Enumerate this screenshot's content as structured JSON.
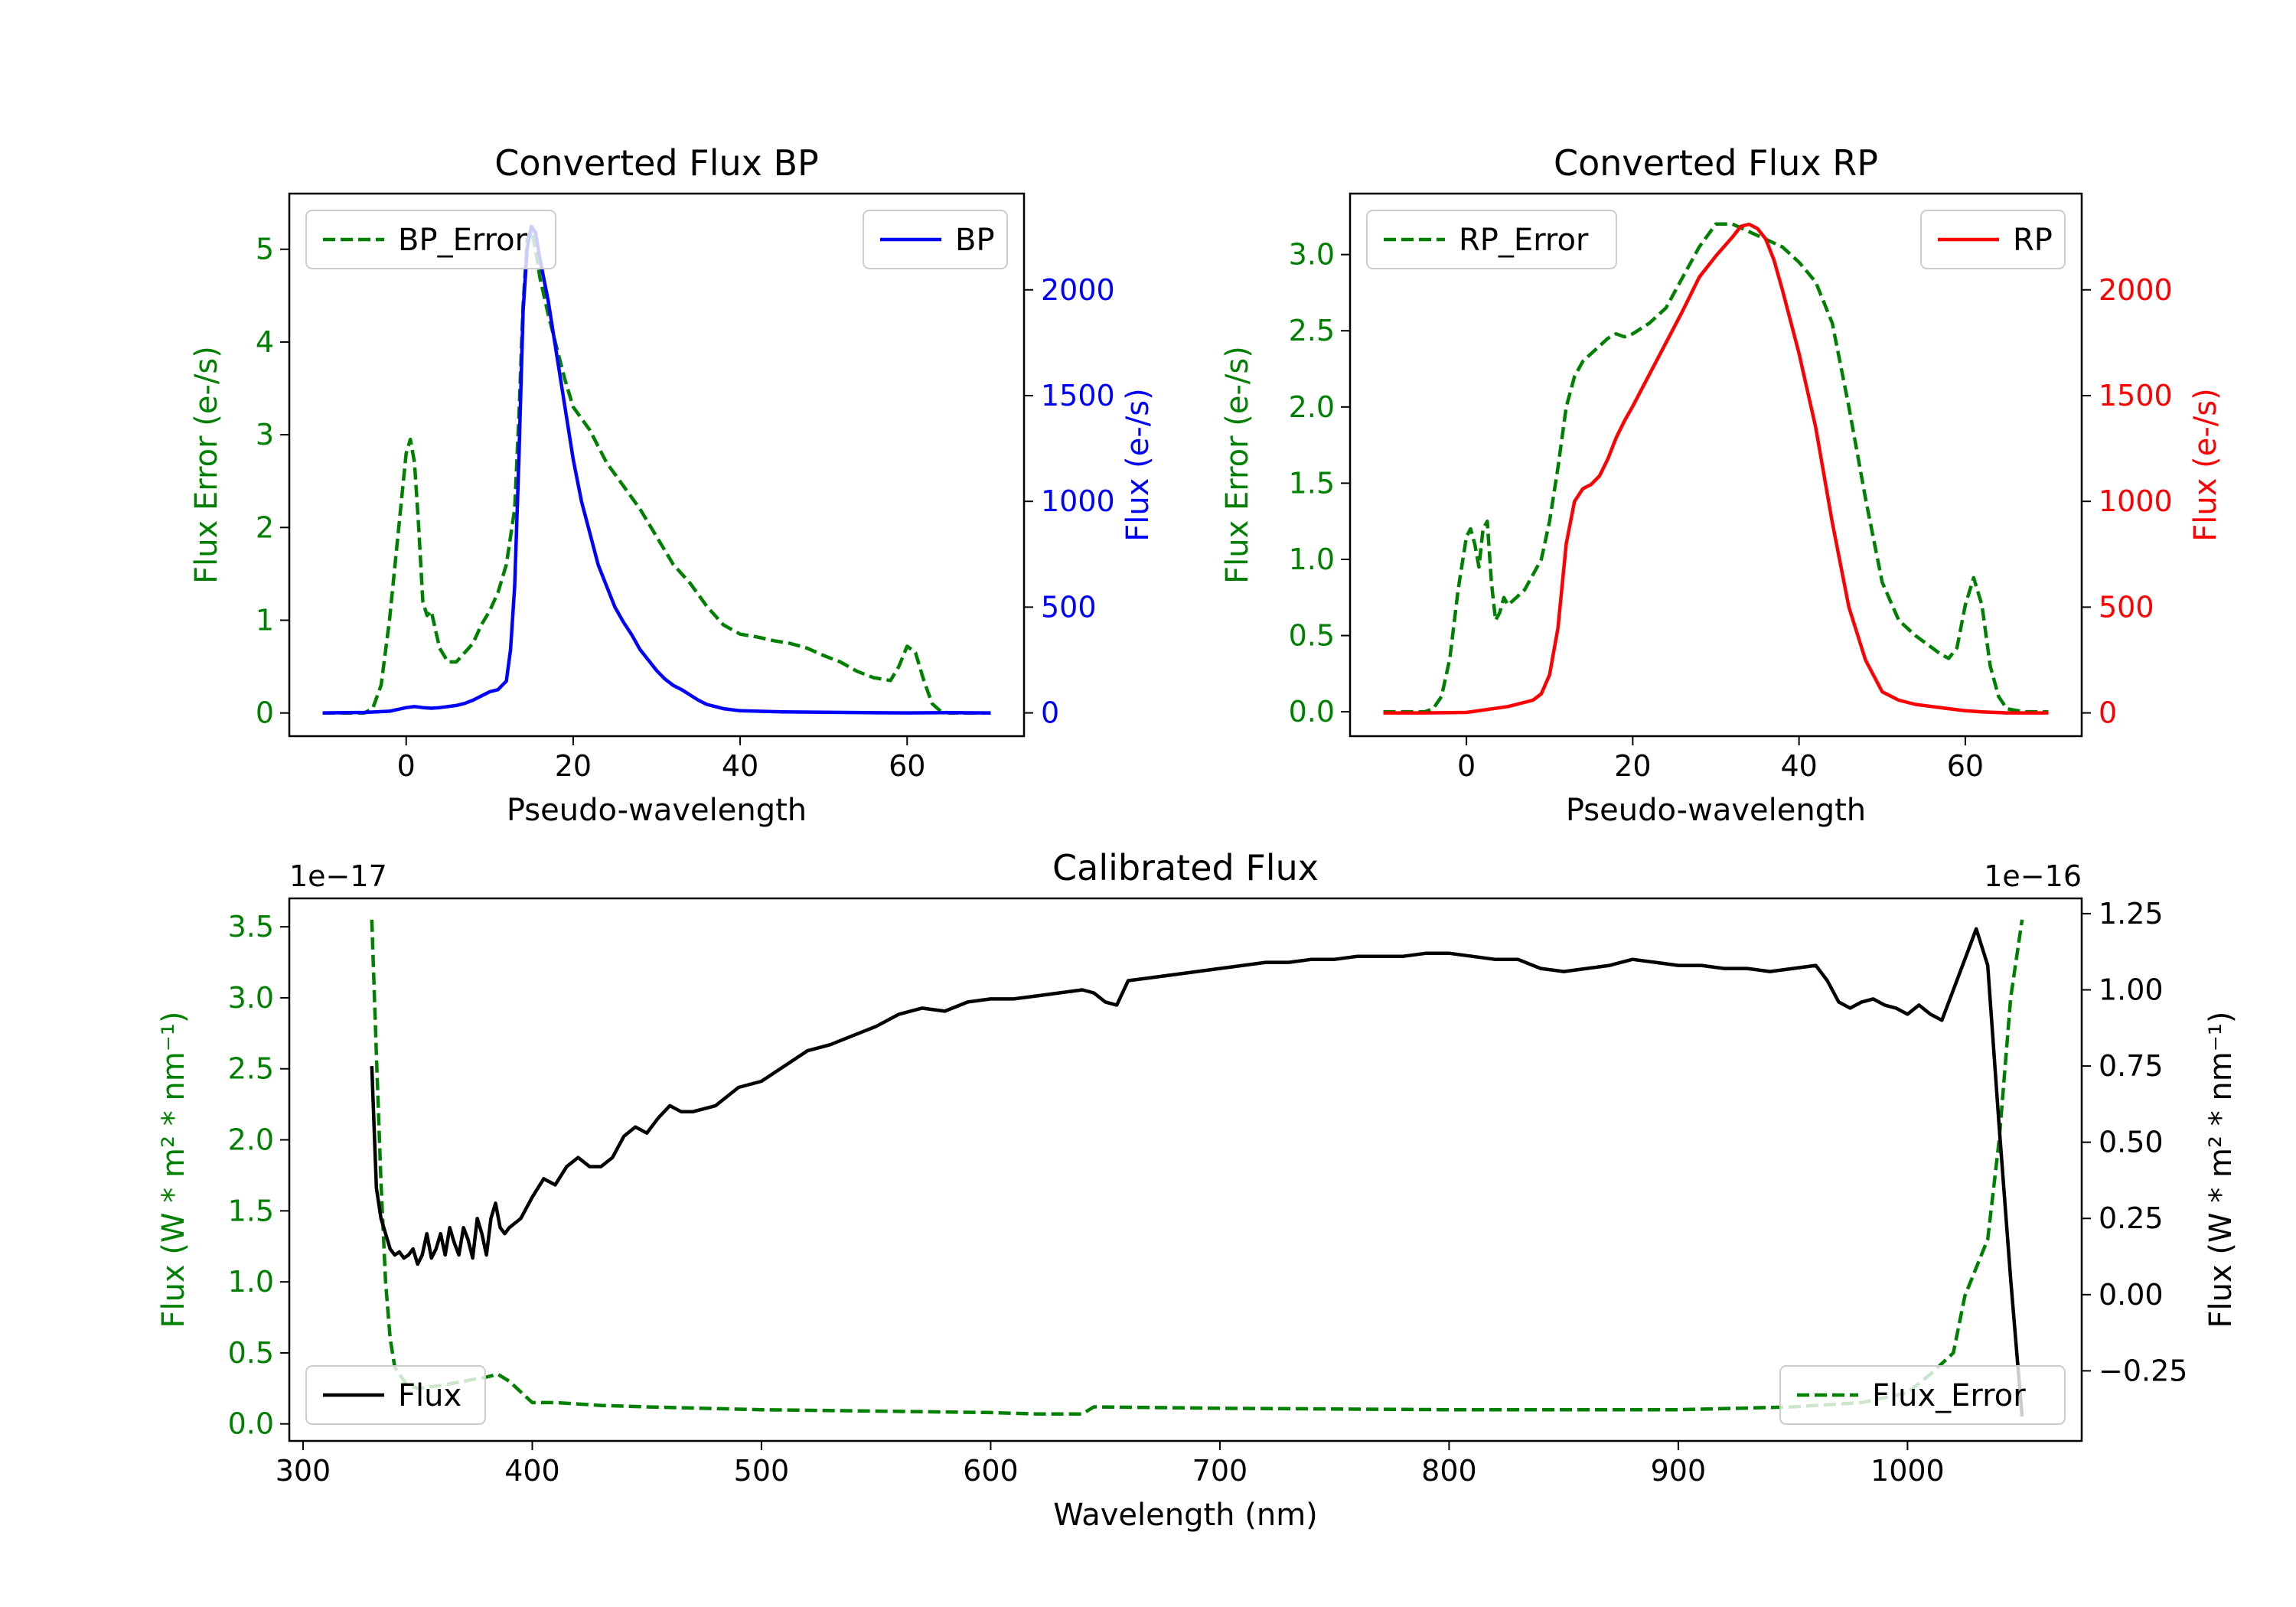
{
  "chart_data": [
    {
      "type": "line",
      "title": "Converted Flux BP",
      "xlabel": "Pseudo-wavelength",
      "ylabel_left": "Flux Error (e-/s)",
      "ylabel_right": "Flux (e-/s)",
      "xlim": [
        -14,
        74
      ],
      "ylim_left": [
        -0.25,
        5.6
      ],
      "ylim_right": [
        -110,
        2455
      ],
      "xticks": [
        0,
        20,
        40,
        60
      ],
      "yticks_left": [
        0,
        1,
        2,
        3,
        4,
        5
      ],
      "yticks_right": [
        0,
        500,
        1000,
        1500,
        2000
      ],
      "legend_left": {
        "label": "BP_Error",
        "position": "upper left"
      },
      "legend_right": {
        "label": "BP",
        "position": "upper right"
      },
      "colors": {
        "error": "#008000",
        "flux": "#0000ff"
      },
      "series": [
        {
          "name": "BP_Error",
          "axis": "left",
          "style": "dashed",
          "x": [
            -10,
            -5,
            -4,
            -3,
            -2,
            -1,
            0,
            0.5,
            1,
            1.5,
            2,
            2.5,
            3,
            3.5,
            4,
            5,
            6,
            7,
            8,
            9,
            10,
            11,
            12,
            13,
            13.5,
            14,
            14.5,
            15,
            15.5,
            16,
            17,
            18,
            19,
            20,
            22,
            24,
            26,
            28,
            30,
            32,
            34,
            36,
            38,
            40,
            42,
            44,
            46,
            48,
            50,
            52,
            54,
            56,
            58,
            59,
            60,
            61,
            62,
            63,
            64,
            65,
            67,
            70
          ],
          "values": [
            0,
            0,
            0.05,
            0.3,
            1.0,
            1.9,
            2.8,
            2.95,
            2.7,
            2.0,
            1.2,
            1.05,
            1.1,
            0.9,
            0.7,
            0.55,
            0.55,
            0.65,
            0.75,
            0.95,
            1.1,
            1.3,
            1.6,
            2.2,
            3.2,
            4.4,
            5.1,
            5.2,
            5.0,
            4.7,
            4.3,
            3.95,
            3.6,
            3.3,
            3.05,
            2.7,
            2.45,
            2.2,
            1.9,
            1.6,
            1.4,
            1.15,
            0.95,
            0.85,
            0.82,
            0.78,
            0.75,
            0.7,
            0.62,
            0.55,
            0.45,
            0.38,
            0.35,
            0.5,
            0.72,
            0.65,
            0.35,
            0.1,
            0.02,
            0,
            0,
            0
          ]
        },
        {
          "name": "BP",
          "axis": "right",
          "style": "solid",
          "x": [
            -10,
            -5,
            -2,
            0,
            1,
            2,
            3,
            4,
            5,
            6,
            7,
            8,
            9,
            10,
            11,
            12,
            12.5,
            13,
            13.5,
            14,
            14.5,
            15,
            15.5,
            16,
            16.5,
            17,
            18,
            19,
            20,
            21,
            22,
            23,
            24,
            25,
            26,
            27,
            28,
            29,
            30,
            31,
            32,
            33,
            34,
            35,
            36,
            38,
            40,
            45,
            50,
            55,
            60,
            65,
            70
          ],
          "values": [
            0,
            2,
            8,
            25,
            30,
            25,
            22,
            25,
            30,
            35,
            45,
            60,
            80,
            100,
            110,
            150,
            300,
            600,
            1200,
            1900,
            2200,
            2300,
            2270,
            2150,
            2050,
            1950,
            1700,
            1450,
            1200,
            1000,
            850,
            700,
            600,
            500,
            430,
            370,
            300,
            250,
            200,
            160,
            130,
            110,
            85,
            60,
            40,
            20,
            10,
            5,
            3,
            1,
            0,
            1,
            0
          ]
        }
      ]
    },
    {
      "type": "line",
      "title": "Converted Flux RP",
      "xlabel": "Pseudo-wavelength",
      "ylabel_left": "Flux Error (e-/s)",
      "ylabel_right": "Flux (e-/s)",
      "xlim": [
        -14,
        74
      ],
      "ylim_left": [
        -0.16,
        3.4
      ],
      "ylim_right": [
        -110,
        2455
      ],
      "xticks": [
        0,
        20,
        40,
        60
      ],
      "yticks_left": [
        0.0,
        0.5,
        1.0,
        1.5,
        2.0,
        2.5,
        3.0
      ],
      "yticks_right": [
        0,
        500,
        1000,
        1500,
        2000
      ],
      "legend_left": {
        "label": "RP_Error",
        "position": "upper left"
      },
      "legend_right": {
        "label": "RP",
        "position": "upper right"
      },
      "colors": {
        "error": "#008000",
        "flux": "#ff0000"
      },
      "series": [
        {
          "name": "RP_Error",
          "axis": "left",
          "style": "dashed",
          "x": [
            -10,
            -5,
            -4,
            -3,
            -2,
            -1,
            0,
            0.5,
            1,
            1.5,
            2,
            2.5,
            3,
            3.5,
            4,
            4.5,
            5,
            6,
            7,
            8,
            9,
            10,
            11,
            12,
            13,
            14,
            15,
            16,
            17,
            18,
            19,
            20,
            22,
            24,
            26,
            28,
            30,
            32,
            34,
            36,
            38,
            40,
            42,
            44,
            46,
            48,
            50,
            52,
            54,
            56,
            57,
            58,
            59,
            60,
            61,
            62,
            63,
            64,
            65,
            67,
            70
          ],
          "values": [
            0,
            0,
            0.02,
            0.1,
            0.35,
            0.8,
            1.15,
            1.2,
            1.1,
            0.95,
            1.2,
            1.25,
            0.85,
            0.6,
            0.65,
            0.75,
            0.7,
            0.75,
            0.8,
            0.9,
            1.0,
            1.25,
            1.6,
            2.0,
            2.2,
            2.3,
            2.35,
            2.4,
            2.45,
            2.48,
            2.46,
            2.48,
            2.55,
            2.65,
            2.85,
            3.05,
            3.2,
            3.2,
            3.15,
            3.1,
            3.05,
            2.95,
            2.82,
            2.55,
            2.0,
            1.4,
            0.85,
            0.6,
            0.5,
            0.42,
            0.38,
            0.35,
            0.42,
            0.7,
            0.88,
            0.7,
            0.3,
            0.1,
            0.02,
            0,
            0
          ]
        },
        {
          "name": "RP",
          "axis": "right",
          "style": "solid",
          "x": [
            -10,
            -5,
            0,
            5,
            8,
            9,
            10,
            11,
            12,
            13,
            14,
            15,
            16,
            17,
            18,
            19,
            20,
            22,
            24,
            26,
            28,
            30,
            32,
            33,
            34,
            35,
            36,
            37,
            38,
            40,
            42,
            44,
            46,
            48,
            50,
            52,
            54,
            56,
            58,
            60,
            62,
            65,
            70
          ],
          "values": [
            0,
            0,
            2,
            30,
            60,
            90,
            180,
            400,
            800,
            1000,
            1060,
            1080,
            1120,
            1200,
            1300,
            1380,
            1450,
            1600,
            1750,
            1900,
            2060,
            2160,
            2250,
            2300,
            2310,
            2290,
            2240,
            2140,
            2000,
            1700,
            1350,
            900,
            500,
            250,
            100,
            60,
            40,
            30,
            20,
            10,
            5,
            0,
            0
          ]
        }
      ]
    },
    {
      "type": "line",
      "title": "Calibrated Flux",
      "xlabel": "Wavelength (nm)",
      "ylabel_left": "Flux (W * m² * nm⁻¹)",
      "ylabel_right": "Flux (W * m² * nm⁻¹)",
      "scale_left": "1e−17",
      "scale_right": "1e−16",
      "xlim": [
        294,
        1076
      ],
      "ylim_left": [
        -0.12,
        3.7
      ],
      "ylim_right": [
        -0.48,
        1.3
      ],
      "xticks": [
        300,
        400,
        500,
        600,
        700,
        800,
        900,
        1000
      ],
      "yticks_left": [
        0.0,
        0.5,
        1.0,
        1.5,
        2.0,
        2.5,
        3.0,
        3.5
      ],
      "yticks_right": [
        -0.25,
        0.0,
        0.25,
        0.5,
        0.75,
        1.0,
        1.25
      ],
      "legend_left": {
        "label": "Flux",
        "position": "lower left"
      },
      "legend_right": {
        "label": "Flux_Error",
        "position": "lower right"
      },
      "colors": {
        "error": "#008000",
        "flux": "#000000"
      },
      "series": [
        {
          "name": "Flux_Error",
          "axis": "left",
          "style": "dashed",
          "x": [
            330,
            332,
            334,
            336,
            338,
            340,
            345,
            350,
            360,
            370,
            380,
            385,
            390,
            400,
            410,
            420,
            430,
            450,
            500,
            550,
            600,
            620,
            640,
            645,
            700,
            800,
            900,
            950,
            980,
            1000,
            1010,
            1020,
            1025,
            1030,
            1035,
            1040,
            1045,
            1050
          ],
          "values": [
            3.55,
            2.6,
            1.7,
            1.0,
            0.6,
            0.4,
            0.28,
            0.25,
            0.27,
            0.3,
            0.33,
            0.35,
            0.3,
            0.15,
            0.15,
            0.14,
            0.13,
            0.12,
            0.1,
            0.09,
            0.08,
            0.07,
            0.07,
            0.12,
            0.11,
            0.1,
            0.1,
            0.12,
            0.15,
            0.22,
            0.35,
            0.5,
            0.9,
            1.1,
            1.3,
            2.0,
            3.0,
            3.55
          ]
        },
        {
          "name": "Flux",
          "axis": "right",
          "style": "solid",
          "x": [
            330,
            331,
            332,
            334,
            336,
            338,
            340,
            342,
            344,
            346,
            348,
            350,
            352,
            354,
            356,
            358,
            360,
            362,
            364,
            366,
            368,
            370,
            372,
            374,
            376,
            378,
            380,
            382,
            384,
            386,
            388,
            390,
            395,
            400,
            405,
            410,
            415,
            420,
            425,
            430,
            435,
            440,
            445,
            450,
            455,
            460,
            465,
            470,
            480,
            490,
            500,
            510,
            520,
            530,
            540,
            550,
            560,
            570,
            580,
            590,
            600,
            610,
            620,
            630,
            640,
            645,
            650,
            655,
            660,
            670,
            680,
            690,
            700,
            710,
            720,
            730,
            740,
            750,
            760,
            770,
            780,
            790,
            800,
            810,
            820,
            830,
            840,
            850,
            860,
            870,
            880,
            890,
            900,
            910,
            920,
            930,
            940,
            950,
            960,
            965,
            970,
            975,
            980,
            985,
            990,
            995,
            1000,
            1005,
            1010,
            1015,
            1020,
            1025,
            1030,
            1035,
            1040,
            1045,
            1050
          ],
          "values": [
            0.75,
            0.55,
            0.35,
            0.25,
            0.2,
            0.15,
            0.13,
            0.14,
            0.12,
            0.13,
            0.15,
            0.1,
            0.13,
            0.2,
            0.12,
            0.15,
            0.2,
            0.13,
            0.22,
            0.17,
            0.13,
            0.22,
            0.18,
            0.12,
            0.25,
            0.2,
            0.13,
            0.25,
            0.3,
            0.22,
            0.2,
            0.22,
            0.25,
            0.32,
            0.38,
            0.36,
            0.42,
            0.45,
            0.42,
            0.42,
            0.45,
            0.52,
            0.55,
            0.53,
            0.58,
            0.62,
            0.6,
            0.6,
            0.62,
            0.68,
            0.7,
            0.75,
            0.8,
            0.82,
            0.85,
            0.88,
            0.92,
            0.94,
            0.93,
            0.96,
            0.97,
            0.97,
            0.98,
            0.99,
            1.0,
            0.99,
            0.96,
            0.95,
            1.03,
            1.04,
            1.05,
            1.06,
            1.07,
            1.08,
            1.09,
            1.09,
            1.1,
            1.1,
            1.11,
            1.11,
            1.11,
            1.12,
            1.12,
            1.11,
            1.1,
            1.1,
            1.07,
            1.06,
            1.07,
            1.08,
            1.1,
            1.09,
            1.08,
            1.08,
            1.07,
            1.07,
            1.06,
            1.07,
            1.08,
            1.03,
            0.96,
            0.94,
            0.96,
            0.97,
            0.95,
            0.94,
            0.92,
            0.95,
            0.92,
            0.9,
            1.0,
            1.1,
            1.2,
            1.08,
            0.55,
            0.05,
            -0.4
          ]
        }
      ]
    }
  ]
}
